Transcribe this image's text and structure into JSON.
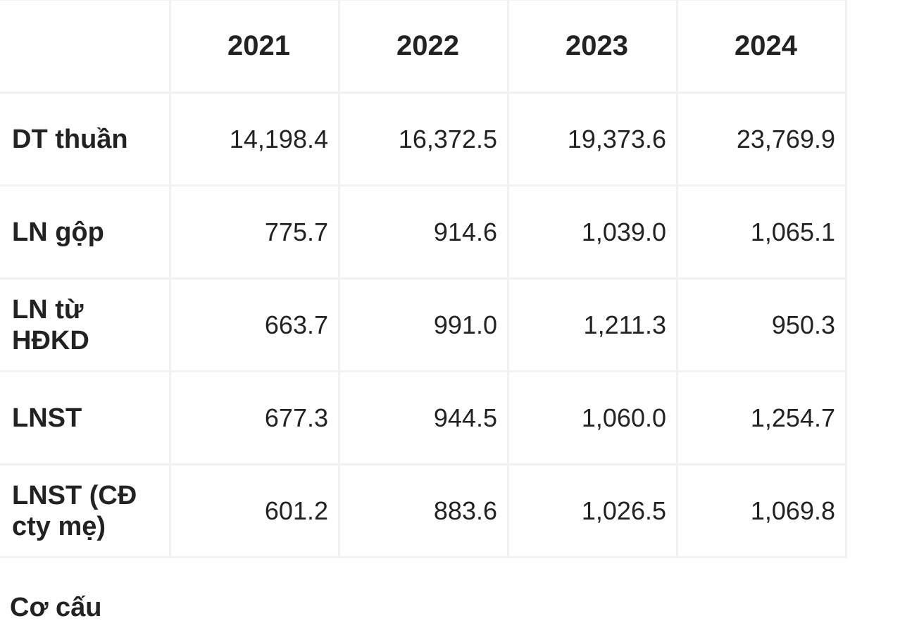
{
  "table": {
    "headers": [
      "",
      "2021",
      "2022",
      "2023",
      "2024"
    ],
    "rows": [
      {
        "label": "DT thuần",
        "values": [
          "14,198.4",
          "16,372.5",
          "19,373.6",
          "23,769.9"
        ]
      },
      {
        "label": "LN gộp",
        "values": [
          "775.7",
          "914.6",
          "1,039.0",
          "1,065.1"
        ]
      },
      {
        "label": "LN từ HĐKD",
        "values": [
          "663.7",
          "991.0",
          "1,211.3",
          "950.3"
        ]
      },
      {
        "label": "LNST",
        "values": [
          "677.3",
          "944.5",
          "1,060.0",
          "1,254.7"
        ]
      },
      {
        "label": "LNST (CĐ cty mẹ)",
        "values": [
          "601.2",
          "883.6",
          "1,026.5",
          "1,069.8"
        ]
      }
    ]
  },
  "following_text": "Cơ cấu"
}
